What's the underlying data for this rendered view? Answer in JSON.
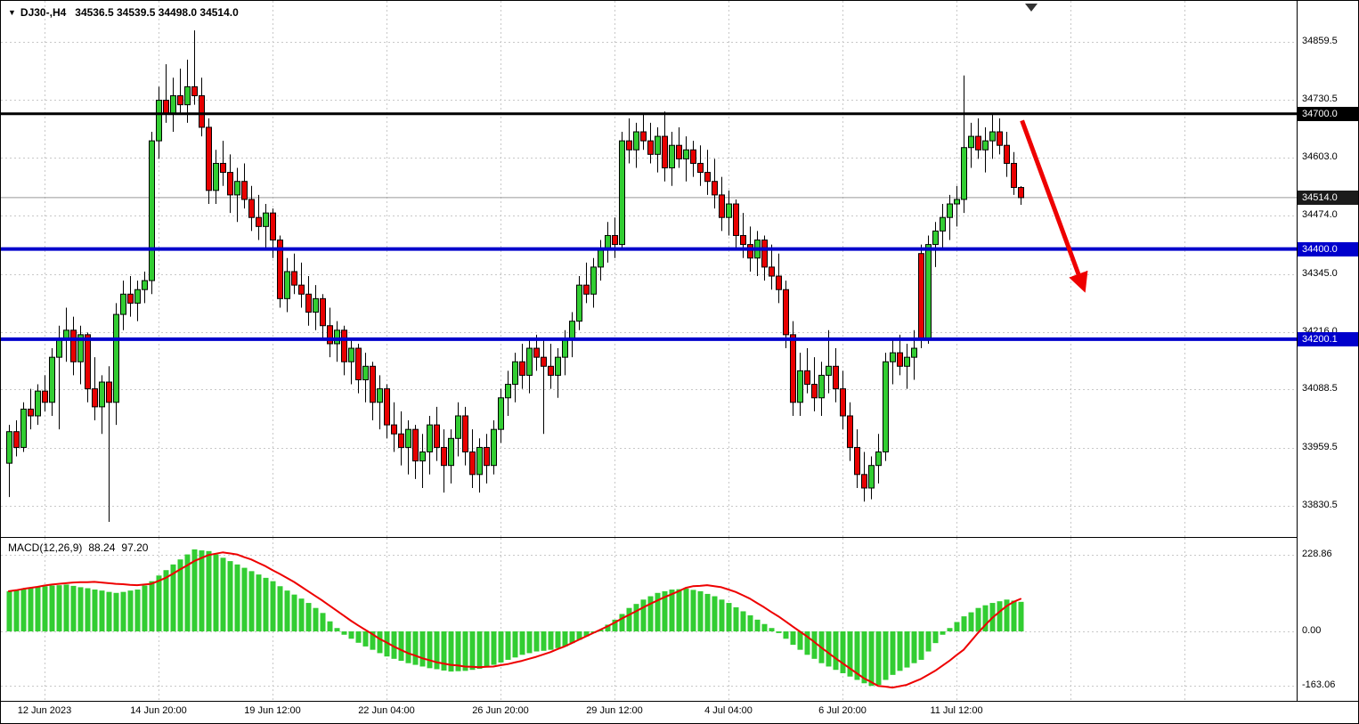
{
  "header": {
    "dropdown_icon": "▼",
    "symbol": "DJ30-,H4",
    "ohlc": "34536.5 34539.5 34498.0 34514.0"
  },
  "colors": {
    "up": "#32cd32",
    "down": "#e80000",
    "wick": "#000000",
    "grid": "#c8c8c8",
    "signal": "#ee0000",
    "arrow": "#ee0000",
    "axis_text": "#000000",
    "tag_text": "#ffffff",
    "background": "#ffffff",
    "frame": "#000000"
  },
  "chart_data": {
    "type": "candlestick",
    "symbol": "DJ30-",
    "timeframe": "H4",
    "price_axis": {
      "gridlines": [
        34859.5,
        34730.5,
        34603.0,
        34474.0,
        34345.0,
        34216.0,
        34088.5,
        33959.5,
        33830.5
      ],
      "labels": [
        "34859.5",
        "34730.5",
        "34603.0",
        "34474.0",
        "34345.0",
        "34216.0",
        "34088.5",
        "33959.5",
        "33830.5"
      ]
    },
    "time_axis": {
      "labels": [
        "12 Jun 2023",
        "14 Jun 20:00",
        "19 Jun 12:00",
        "22 Jun 04:00",
        "26 Jun 20:00",
        "29 Jun 12:00",
        "4 Jul 04:00",
        "6 Jul 20:00",
        "11 Jul 12:00"
      ],
      "indices": [
        5,
        21,
        37,
        53,
        69,
        85,
        101,
        117,
        133
      ],
      "extra_gridline_indices": [
        149,
        165
      ]
    },
    "hlines": [
      {
        "price": 34700.0,
        "label": "34700.0",
        "color": "#000000",
        "width": 3,
        "tag_bg": "#000000"
      },
      {
        "price": 34400.0,
        "label": "34400.0",
        "color": "#0000cc",
        "width": 4,
        "tag_bg": "#0000cc"
      },
      {
        "price": 34200.1,
        "label": "34200.1",
        "color": "#0000cc",
        "width": 4,
        "tag_bg": "#0000cc"
      }
    ],
    "current_price": {
      "value": 34514.0,
      "label": "34514.0",
      "tag_bg": "#1b1b1b",
      "line_color": "#999999"
    },
    "arrow": {
      "from_index": 142.2,
      "from_price": 34685,
      "to_index": 150.8,
      "to_price": 34315,
      "color": "#ee0000"
    },
    "shift_marker_index": 143.5,
    "candles": [
      [
        33925,
        34010,
        33850,
        33995
      ],
      [
        33995,
        34020,
        33940,
        33960
      ],
      [
        33960,
        34060,
        33950,
        34045
      ],
      [
        34045,
        34090,
        34000,
        34030
      ],
      [
        34030,
        34100,
        34010,
        34085
      ],
      [
        34085,
        34120,
        34040,
        34060
      ],
      [
        34060,
        34180,
        34030,
        34160
      ],
      [
        34160,
        34230,
        34000,
        34200
      ],
      [
        34200,
        34270,
        34150,
        34220
      ],
      [
        34220,
        34250,
        34120,
        34150
      ],
      [
        34150,
        34230,
        34100,
        34210
      ],
      [
        34210,
        34215,
        34060,
        34090
      ],
      [
        34090,
        34160,
        34020,
        34050
      ],
      [
        34050,
        34120,
        33990,
        34105
      ],
      [
        34105,
        34140,
        33795,
        34060
      ],
      [
        34060,
        34280,
        34010,
        34255
      ],
      [
        34255,
        34330,
        34220,
        34300
      ],
      [
        34300,
        34340,
        34250,
        34280
      ],
      [
        34280,
        34330,
        34240,
        34310
      ],
      [
        34310,
        34350,
        34280,
        34330
      ],
      [
        34330,
        34660,
        34300,
        34640
      ],
      [
        34640,
        34760,
        34600,
        34730
      ],
      [
        34730,
        34810,
        34680,
        34700
      ],
      [
        34700,
        34780,
        34660,
        34740
      ],
      [
        34740,
        34800,
        34700,
        34720
      ],
      [
        34720,
        34820,
        34680,
        34760
      ],
      [
        34760,
        34885,
        34720,
        34740
      ],
      [
        34740,
        34780,
        34650,
        34670
      ],
      [
        34670,
        34690,
        34500,
        34530
      ],
      [
        34530,
        34620,
        34500,
        34590
      ],
      [
        34590,
        34640,
        34540,
        34570
      ],
      [
        34570,
        34610,
        34480,
        34520
      ],
      [
        34520,
        34580,
        34460,
        34550
      ],
      [
        34550,
        34590,
        34490,
        34510
      ],
      [
        34510,
        34540,
        34440,
        34470
      ],
      [
        34470,
        34520,
        34420,
        34450
      ],
      [
        34450,
        34500,
        34400,
        34480
      ],
      [
        34480,
        34490,
        34380,
        34420
      ],
      [
        34420,
        34430,
        34270,
        34290
      ],
      [
        34290,
        34380,
        34260,
        34350
      ],
      [
        34350,
        34390,
        34300,
        34320
      ],
      [
        34320,
        34370,
        34270,
        34300
      ],
      [
        34300,
        34340,
        34230,
        34260
      ],
      [
        34260,
        34320,
        34220,
        34290
      ],
      [
        34290,
        34300,
        34200,
        34230
      ],
      [
        34230,
        34270,
        34160,
        34190
      ],
      [
        34190,
        34240,
        34150,
        34220
      ],
      [
        34220,
        34230,
        34120,
        34150
      ],
      [
        34150,
        34200,
        34100,
        34180
      ],
      [
        34180,
        34190,
        34080,
        34110
      ],
      [
        34110,
        34170,
        34060,
        34140
      ],
      [
        34140,
        34150,
        34020,
        34060
      ],
      [
        34060,
        34120,
        34000,
        34090
      ],
      [
        34090,
        34100,
        33980,
        34010
      ],
      [
        34010,
        34060,
        33950,
        33990
      ],
      [
        33990,
        34040,
        33920,
        33960
      ],
      [
        33960,
        34020,
        33900,
        34000
      ],
      [
        34000,
        34010,
        33890,
        33930
      ],
      [
        33930,
        33990,
        33870,
        33950
      ],
      [
        33950,
        34030,
        33900,
        34010
      ],
      [
        34010,
        34050,
        33930,
        33960
      ],
      [
        33960,
        34000,
        33860,
        33920
      ],
      [
        33920,
        34000,
        33880,
        33980
      ],
      [
        33980,
        34060,
        33940,
        34030
      ],
      [
        34030,
        34050,
        33920,
        33950
      ],
      [
        33950,
        34000,
        33870,
        33900
      ],
      [
        33900,
        33980,
        33860,
        33960
      ],
      [
        33960,
        33990,
        33880,
        33920
      ],
      [
        33920,
        34020,
        33900,
        34000
      ],
      [
        34000,
        34090,
        33970,
        34070
      ],
      [
        34070,
        34130,
        34030,
        34100
      ],
      [
        34100,
        34170,
        34060,
        34150
      ],
      [
        34150,
        34190,
        34090,
        34120
      ],
      [
        34120,
        34200,
        34080,
        34180
      ],
      [
        34180,
        34210,
        34130,
        34160
      ],
      [
        34160,
        34200,
        33990,
        34140
      ],
      [
        34140,
        34190,
        34090,
        34120
      ],
      [
        34120,
        34180,
        34070,
        34160
      ],
      [
        34160,
        34220,
        34120,
        34200
      ],
      [
        34200,
        34260,
        34160,
        34240
      ],
      [
        34240,
        34340,
        34220,
        34320
      ],
      [
        34320,
        34370,
        34280,
        34300
      ],
      [
        34300,
        34380,
        34270,
        34360
      ],
      [
        34360,
        34420,
        34330,
        34400
      ],
      [
        34400,
        34460,
        34370,
        34430
      ],
      [
        34430,
        34470,
        34380,
        34410
      ],
      [
        34410,
        34660,
        34400,
        34640
      ],
      [
        34640,
        34690,
        34590,
        34620
      ],
      [
        34620,
        34680,
        34580,
        34660
      ],
      [
        34660,
        34700,
        34620,
        34640
      ],
      [
        34640,
        34680,
        34590,
        34610
      ],
      [
        34610,
        34670,
        34570,
        34650
      ],
      [
        34650,
        34705,
        34550,
        34580
      ],
      [
        34580,
        34660,
        34540,
        34630
      ],
      [
        34630,
        34670,
        34580,
        34600
      ],
      [
        34600,
        34650,
        34550,
        34620
      ],
      [
        34620,
        34640,
        34560,
        34590
      ],
      [
        34590,
        34630,
        34540,
        34570
      ],
      [
        34570,
        34620,
        34520,
        34550
      ],
      [
        34550,
        34600,
        34490,
        34520
      ],
      [
        34520,
        34560,
        34440,
        34470
      ],
      [
        34470,
        34530,
        34430,
        34500
      ],
      [
        34500,
        34510,
        34400,
        34430
      ],
      [
        34430,
        34480,
        34380,
        34410
      ],
      [
        34410,
        34450,
        34350,
        34380
      ],
      [
        34380,
        34440,
        34340,
        34420
      ],
      [
        34420,
        34430,
        34330,
        34360
      ],
      [
        34360,
        34410,
        34310,
        34340
      ],
      [
        34340,
        34390,
        34280,
        34310
      ],
      [
        34310,
        34330,
        34180,
        34210
      ],
      [
        34210,
        34240,
        34030,
        34060
      ],
      [
        34060,
        34170,
        34030,
        34130
      ],
      [
        34130,
        34180,
        34080,
        34100
      ],
      [
        34100,
        34160,
        34040,
        34070
      ],
      [
        34070,
        34150,
        34030,
        34120
      ],
      [
        34120,
        34220,
        34080,
        34140
      ],
      [
        34140,
        34180,
        34060,
        34090
      ],
      [
        34090,
        34130,
        34000,
        34030
      ],
      [
        34030,
        34060,
        33930,
        33960
      ],
      [
        33960,
        34000,
        33870,
        33900
      ],
      [
        33900,
        33950,
        33840,
        33870
      ],
      [
        33870,
        33940,
        33845,
        33920
      ],
      [
        33920,
        33990,
        33880,
        33950
      ],
      [
        33950,
        34170,
        33930,
        34150
      ],
      [
        34150,
        34200,
        34100,
        34170
      ],
      [
        34170,
        34210,
        34120,
        34140
      ],
      [
        34140,
        34190,
        34090,
        34160
      ],
      [
        34160,
        34220,
        34110,
        34180
      ],
      [
        34390,
        34410,
        34180,
        34200
      ],
      [
        34200,
        34430,
        34190,
        34410
      ],
      [
        34410,
        34460,
        34360,
        34440
      ],
      [
        34440,
        34500,
        34400,
        34470
      ],
      [
        34470,
        34520,
        34420,
        34500
      ],
      [
        34500,
        34540,
        34450,
        34510
      ],
      [
        34510,
        34785,
        34480,
        34625
      ],
      [
        34625,
        34680,
        34580,
        34650
      ],
      [
        34650,
        34690,
        34600,
        34620
      ],
      [
        34620,
        34670,
        34570,
        34640
      ],
      [
        34640,
        34700,
        34600,
        34660
      ],
      [
        34660,
        34690,
        34610,
        34630
      ],
      [
        34630,
        34660,
        34560,
        34590
      ],
      [
        34590,
        34615,
        34520,
        34536.5
      ],
      [
        34536.5,
        34539.5,
        34498.0,
        34514.0
      ]
    ],
    "macd": {
      "label": "MACD(12,26,9)",
      "value_main": "88.24",
      "value_signal": "97.20",
      "axis": {
        "values": [
          228.86,
          0.0,
          -163.06
        ],
        "labels": [
          "228.86",
          "0.00",
          "-163.06"
        ]
      },
      "histogram": [
        120,
        123,
        126,
        129,
        132,
        135,
        137,
        138,
        140,
        136,
        132,
        129,
        125,
        122,
        118,
        115,
        118,
        122,
        125,
        137,
        150,
        167,
        183,
        200,
        215,
        230,
        245,
        242,
        240,
        230,
        220,
        210,
        200,
        190,
        180,
        170,
        160,
        150,
        135,
        122,
        110,
        98,
        85,
        70,
        55,
        30,
        10,
        -10,
        -22,
        -34,
        -45,
        -55,
        -65,
        -75,
        -82,
        -88,
        -95,
        -100,
        -105,
        -110,
        -113,
        -117,
        -120,
        -119,
        -118,
        -115,
        -112,
        -106,
        -100,
        -93,
        -85,
        -78,
        -70,
        -65,
        -60,
        -58,
        -55,
        -50,
        -45,
        -35,
        -25,
        -15,
        -5,
        5,
        20,
        35,
        52,
        70,
        82,
        95,
        105,
        115,
        120,
        125,
        126,
        128,
        124,
        120,
        112,
        105,
        95,
        85,
        72,
        60,
        48,
        35,
        22,
        10,
        -5,
        -22,
        -40,
        -55,
        -70,
        -82,
        -95,
        -105,
        -115,
        -125,
        -135,
        -145,
        -155,
        -163,
        -160,
        -145,
        -130,
        -118,
        -108,
        -95,
        -85,
        -60,
        -35,
        -10,
        10,
        28,
        45,
        57,
        70,
        78,
        85,
        90,
        95,
        92,
        88.24
      ],
      "signal": [
        120,
        123,
        127,
        130,
        133,
        137,
        140,
        142,
        144,
        146,
        147,
        147,
        148,
        146,
        144,
        142,
        141,
        139,
        138,
        140,
        142,
        151,
        160,
        172,
        185,
        197,
        210,
        219,
        228,
        232,
        236,
        233,
        230,
        222,
        215,
        205,
        195,
        183,
        172,
        160,
        148,
        134,
        120,
        106,
        92,
        77,
        62,
        47,
        32,
        18,
        5,
        -8,
        -22,
        -33,
        -45,
        -55,
        -65,
        -72,
        -80,
        -86,
        -92,
        -96,
        -100,
        -102,
        -105,
        -106,
        -107,
        -106,
        -105,
        -101,
        -98,
        -93,
        -88,
        -82,
        -76,
        -69,
        -62,
        -53,
        -45,
        -35,
        -25,
        -15,
        -5,
        5,
        15,
        26,
        38,
        49,
        60,
        71,
        82,
        92,
        102,
        111,
        120,
        130,
        135,
        136,
        138,
        135,
        132,
        125,
        118,
        108,
        98,
        85,
        72,
        58,
        45,
        30,
        15,
        0,
        -15,
        -31,
        -48,
        -64,
        -80,
        -95,
        -110,
        -125,
        -140,
        -151,
        -163,
        -165,
        -168,
        -164,
        -160,
        -151,
        -142,
        -130,
        -118,
        -103,
        -88,
        -71,
        -55,
        -30,
        -5,
        18,
        40,
        58,
        75,
        88,
        97.2
      ]
    }
  }
}
